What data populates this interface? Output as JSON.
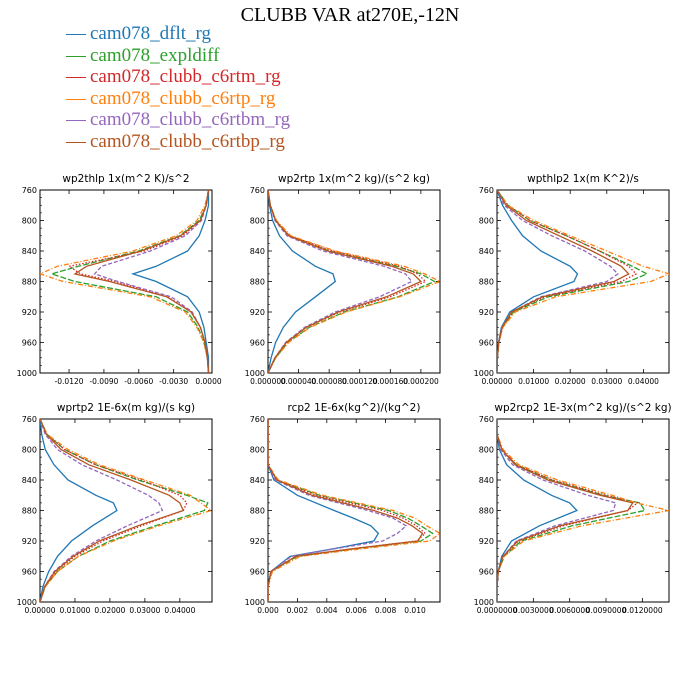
{
  "title": "CLUBB VAR at270E,-12N",
  "legend": [
    {
      "name": "cam078_dflt_rg",
      "color": "#1f77b4",
      "dash": "solid"
    },
    {
      "name": "cam078_expldiff",
      "color": "#2ca02c",
      "dash": "longdash"
    },
    {
      "name": "cam078_clubb_c6rtm_rg",
      "color": "#d62728",
      "dash": "dot"
    },
    {
      "name": "cam078_clubb_c6rtp_rg",
      "color": "#ff7f0e",
      "dash": "dashdot"
    },
    {
      "name": "cam078_clubb_c6rtbm_rg",
      "color": "#9467bd",
      "dash": "dash"
    },
    {
      "name": "cam078_clubb_c6rtbp_rg",
      "color": "#b5541f",
      "dash": "solid"
    }
  ],
  "chart_data": [
    {
      "type": "line",
      "title": "wp2thlp   1x(m^2 K)/s^2",
      "ylim": [
        760,
        1000
      ],
      "yticks": [
        760,
        800,
        840,
        880,
        920,
        960,
        1000
      ],
      "xlim": [
        -0.0145,
        0.0003
      ],
      "xticks": [
        -0.012,
        -0.009,
        -0.006,
        -0.003,
        0
      ],
      "xticklabels": [
        "-0.0120",
        "-0.0090",
        "-0.0060",
        "-0.0030",
        "0.0000"
      ],
      "levels": [
        760,
        780,
        800,
        820,
        840,
        860,
        870,
        880,
        900,
        920,
        940,
        960,
        980,
        1000
      ],
      "series": [
        {
          "name": "cam078_dflt_rg",
          "values": [
            0,
            0,
            -0.0003,
            -0.0008,
            -0.0018,
            -0.0045,
            -0.0065,
            -0.0045,
            -0.0018,
            -0.0008,
            -0.0004,
            -0.0002,
            0,
            0
          ]
        },
        {
          "name": "cam078_expldiff",
          "values": [
            0,
            -0.0002,
            -0.0008,
            -0.0025,
            -0.006,
            -0.0112,
            -0.0135,
            -0.0115,
            -0.0045,
            -0.0018,
            -0.0009,
            -0.0004,
            -0.0001,
            0
          ]
        },
        {
          "name": "cam078_clubb_c6rtm_rg",
          "values": [
            0,
            -0.0002,
            -0.0007,
            -0.0022,
            -0.0055,
            -0.012,
            -0.011,
            -0.008,
            -0.0035,
            -0.0015,
            -0.0007,
            -0.0003,
            -0.0001,
            0
          ]
        },
        {
          "name": "cam078_clubb_c6rtp_rg",
          "values": [
            0,
            -0.0003,
            -0.001,
            -0.0028,
            -0.0065,
            -0.013,
            -0.0145,
            -0.0125,
            -0.005,
            -0.002,
            -0.001,
            -0.0004,
            -0.0001,
            0
          ]
        },
        {
          "name": "cam078_clubb_c6rtbm_rg",
          "values": [
            0,
            -0.0002,
            -0.0006,
            -0.002,
            -0.005,
            -0.0092,
            -0.0098,
            -0.0078,
            -0.0032,
            -0.0014,
            -0.0007,
            -0.0003,
            -0.0001,
            0
          ]
        },
        {
          "name": "cam078_clubb_c6rtbp_rg",
          "values": [
            0,
            -0.0002,
            -0.0007,
            -0.0024,
            -0.0058,
            -0.0105,
            -0.0115,
            -0.0085,
            -0.0036,
            -0.0015,
            -0.0007,
            -0.0003,
            -0.0001,
            0
          ]
        }
      ]
    },
    {
      "type": "line",
      "title": "wp2rtp   1x(m^2 kg)/(s^2 kg)",
      "ylim": [
        760,
        1000
      ],
      "yticks": [
        760,
        800,
        840,
        880,
        920,
        960,
        1000
      ],
      "xlim": [
        0,
        0.000225
      ],
      "xticks": [
        0,
        4e-05,
        8e-05,
        0.00012,
        0.00016,
        0.0002
      ],
      "xticklabels": [
        "0.000000",
        "0.000040",
        "0.000080",
        "0.000120",
        "0.000160",
        "0.000200"
      ],
      "levels": [
        760,
        780,
        800,
        820,
        840,
        860,
        870,
        880,
        900,
        920,
        940,
        960,
        980,
        1000
      ],
      "series": [
        {
          "name": "cam078_dflt_rg",
          "values": [
            0,
            2e-06,
            6e-06,
            1.5e-05,
            3.2e-05,
            6.2e-05,
            8.5e-05,
            8.8e-05,
            6.2e-05,
            3.6e-05,
            2e-05,
            1e-05,
            4e-06,
            0
          ]
        },
        {
          "name": "cam078_expldiff",
          "values": [
            0,
            3e-06,
            1e-05,
            2.8e-05,
            8e-05,
            0.000168,
            0.0002,
            0.000218,
            0.00017,
            0.0001,
            5.4e-05,
            2.6e-05,
            1e-05,
            0
          ]
        },
        {
          "name": "cam078_clubb_c6rtm_rg",
          "values": [
            0,
            3e-06,
            1e-05,
            2.8e-05,
            8.5e-05,
            0.000172,
            0.000196,
            0.000206,
            0.00016,
            9.4e-05,
            5e-05,
            2.4e-05,
            9e-06,
            0
          ]
        },
        {
          "name": "cam078_clubb_c6rtp_rg",
          "values": [
            0,
            3e-06,
            1.1e-05,
            3e-05,
            8.8e-05,
            0.000178,
            0.000205,
            0.000225,
            0.000172,
            0.000102,
            5.5e-05,
            2.7e-05,
            1e-05,
            0
          ]
        },
        {
          "name": "cam078_clubb_c6rtbm_rg",
          "values": [
            0,
            3e-06,
            9e-06,
            2.5e-05,
            7.2e-05,
            0.000152,
            0.00018,
            0.000188,
            0.000146,
            8.8e-05,
            4.8e-05,
            2.3e-05,
            9e-06,
            0
          ]
        },
        {
          "name": "cam078_clubb_c6rtbp_rg",
          "values": [
            0,
            3e-06,
            1e-05,
            2.7e-05,
            7.8e-05,
            0.000162,
            0.00019,
            0.0002,
            0.000155,
            9.2e-05,
            5e-05,
            2.4e-05,
            9e-06,
            0
          ]
        }
      ]
    },
    {
      "type": "line",
      "title": "wpthlp2   1x(m K^2)/s",
      "ylim": [
        760,
        1000
      ],
      "yticks": [
        760,
        800,
        840,
        880,
        920,
        960,
        1000
      ],
      "xlim": [
        0,
        0.047
      ],
      "xticks": [
        0,
        0.01,
        0.02,
        0.03,
        0.04
      ],
      "xticklabels": [
        "0.00000",
        "0.01000",
        "0.02000",
        "0.03000",
        "0.04000"
      ],
      "levels": [
        760,
        780,
        800,
        820,
        840,
        860,
        870,
        880,
        900,
        920,
        940,
        960,
        980,
        1000
      ],
      "series": [
        {
          "name": "cam078_dflt_rg",
          "values": [
            0,
            0.0015,
            0.004,
            0.007,
            0.012,
            0.02,
            0.022,
            0.021,
            0.01,
            0.0035,
            0.0012,
            0.0004,
            0.0001,
            0
          ]
        },
        {
          "name": "cam078_expldiff",
          "values": [
            0,
            0.003,
            0.009,
            0.019,
            0.028,
            0.037,
            0.041,
            0.036,
            0.014,
            0.0045,
            0.0015,
            0.0005,
            0.0001,
            0
          ]
        },
        {
          "name": "cam078_clubb_c6rtm_rg",
          "values": [
            0,
            0.003,
            0.009,
            0.019,
            0.028,
            0.036,
            0.038,
            0.034,
            0.013,
            0.0042,
            0.0014,
            0.0005,
            0.0001,
            0
          ]
        },
        {
          "name": "cam078_clubb_c6rtp_rg",
          "values": [
            0,
            0.003,
            0.01,
            0.02,
            0.03,
            0.04,
            0.047,
            0.042,
            0.016,
            0.005,
            0.0016,
            0.0005,
            0.0001,
            0
          ]
        },
        {
          "name": "cam078_clubb_c6rtbm_rg",
          "values": [
            0,
            0.002,
            0.007,
            0.015,
            0.024,
            0.031,
            0.033,
            0.03,
            0.012,
            0.004,
            0.0013,
            0.0004,
            0.0001,
            0
          ]
        },
        {
          "name": "cam078_clubb_c6rtbp_rg",
          "values": [
            0,
            0.0025,
            0.008,
            0.017,
            0.026,
            0.034,
            0.036,
            0.032,
            0.0125,
            0.004,
            0.0014,
            0.0005,
            0.0001,
            0
          ]
        }
      ]
    },
    {
      "type": "line",
      "title": "wprtp2   1E-6x(m kg)/(s kg)",
      "ylim": [
        760,
        1000
      ],
      "yticks": [
        760,
        800,
        840,
        880,
        920,
        960,
        1000
      ],
      "xlim": [
        0,
        0.0492
      ],
      "xticks": [
        0,
        0.01,
        0.02,
        0.03,
        0.04
      ],
      "xticklabels": [
        "0.00000",
        "0.01000",
        "0.02000",
        "0.03000",
        "0.04000"
      ],
      "levels": [
        760,
        780,
        800,
        820,
        840,
        860,
        870,
        880,
        900,
        920,
        940,
        960,
        980,
        1000
      ],
      "series": [
        {
          "name": "cam078_dflt_rg",
          "values": [
            0,
            0.0005,
            0.0015,
            0.004,
            0.008,
            0.016,
            0.021,
            0.022,
            0.015,
            0.009,
            0.005,
            0.0025,
            0.0008,
            0
          ]
        },
        {
          "name": "cam078_expldiff",
          "values": [
            0,
            0.002,
            0.007,
            0.016,
            0.028,
            0.042,
            0.048,
            0.047,
            0.033,
            0.02,
            0.011,
            0.005,
            0.0015,
            0
          ]
        },
        {
          "name": "cam078_clubb_c6rtm_rg",
          "values": [
            0,
            0.002,
            0.007,
            0.016,
            0.029,
            0.04,
            0.042,
            0.041,
            0.029,
            0.018,
            0.01,
            0.0045,
            0.0014,
            0
          ]
        },
        {
          "name": "cam078_clubb_c6rtp_rg",
          "values": [
            0,
            0.002,
            0.008,
            0.017,
            0.03,
            0.043,
            0.046,
            0.049,
            0.034,
            0.021,
            0.011,
            0.005,
            0.0015,
            0
          ]
        },
        {
          "name": "cam078_clubb_c6rtbm_rg",
          "values": [
            0,
            0.0015,
            0.005,
            0.012,
            0.022,
            0.031,
            0.034,
            0.035,
            0.025,
            0.016,
            0.009,
            0.004,
            0.0013,
            0
          ]
        },
        {
          "name": "cam078_clubb_c6rtbp_rg",
          "values": [
            0,
            0.0018,
            0.006,
            0.014,
            0.026,
            0.037,
            0.04,
            0.041,
            0.028,
            0.017,
            0.0095,
            0.0043,
            0.0013,
            0
          ]
        }
      ]
    },
    {
      "type": "line",
      "title": "rcp2   1E-6x(kg^2)/(kg^2)",
      "ylim": [
        760,
        1000
      ],
      "yticks": [
        760,
        800,
        840,
        880,
        920,
        960,
        1000
      ],
      "xlim": [
        0,
        0.0117
      ],
      "xticks": [
        0,
        0.002,
        0.004,
        0.006,
        0.008,
        0.01
      ],
      "xticklabels": [
        "0.000",
        "0.002",
        "0.004",
        "0.006",
        "0.008",
        "0.010"
      ],
      "levels": [
        760,
        780,
        800,
        820,
        840,
        860,
        880,
        890,
        900,
        910,
        920,
        930,
        940,
        960,
        980,
        1000
      ],
      "series": [
        {
          "name": "cam078_dflt_rg",
          "values": [
            0,
            0,
            0,
            0,
            0.0004,
            0.002,
            0.0045,
            0.0058,
            0.007,
            0.0075,
            0.0072,
            0.0045,
            0.0015,
            0.0002,
            0,
            0
          ]
        },
        {
          "name": "cam078_expldiff",
          "values": [
            0,
            0,
            0,
            0,
            0.0006,
            0.0035,
            0.0082,
            0.0095,
            0.0104,
            0.0112,
            0.0104,
            0.006,
            0.002,
            0.0002,
            0,
            0
          ]
        },
        {
          "name": "cam078_clubb_c6rtm_rg",
          "values": [
            0,
            0,
            0,
            0,
            0.0006,
            0.0033,
            0.0078,
            0.0092,
            0.0101,
            0.0107,
            0.0101,
            0.0058,
            0.0019,
            0.0002,
            0,
            0
          ]
        },
        {
          "name": "cam078_clubb_c6rtp_rg",
          "values": [
            0,
            0,
            0,
            0,
            0.0007,
            0.0037,
            0.0085,
            0.01,
            0.0108,
            0.0117,
            0.011,
            0.0065,
            0.0022,
            0.0003,
            0,
            0
          ]
        },
        {
          "name": "cam078_clubb_c6rtbm_rg",
          "values": [
            0,
            0,
            0,
            0,
            0.0005,
            0.0028,
            0.0068,
            0.0085,
            0.0094,
            0.0088,
            0.0078,
            0.0046,
            0.0016,
            0.0002,
            0,
            0
          ]
        },
        {
          "name": "cam078_clubb_c6rtbp_rg",
          "values": [
            0,
            0,
            0,
            0,
            0.0006,
            0.003,
            0.0072,
            0.0088,
            0.0098,
            0.0105,
            0.0102,
            0.0058,
            0.0019,
            0.0002,
            0,
            0
          ]
        }
      ]
    },
    {
      "type": "line",
      "title": "wp2rcp2   1E-3x(m^2 kg)/(s^2 kg)",
      "ylim": [
        760,
        1000
      ],
      "yticks": [
        760,
        800,
        840,
        880,
        920,
        960,
        1000
      ],
      "xlim": [
        0,
        0.0142
      ],
      "xticks": [
        0,
        0.003,
        0.006,
        0.009,
        0.012
      ],
      "xticklabels": [
        "0.0000000",
        "0.0030000",
        "0.0060000",
        "0.0090000",
        "0.0120000"
      ],
      "levels": [
        760,
        780,
        800,
        820,
        840,
        860,
        870,
        880,
        900,
        920,
        940,
        960,
        980,
        1000
      ],
      "series": [
        {
          "name": "cam078_dflt_rg",
          "values": [
            0,
            0,
            0.0002,
            0.0008,
            0.0022,
            0.0045,
            0.006,
            0.0066,
            0.0035,
            0.0012,
            0.0004,
            0.0001,
            0,
            0
          ]
        },
        {
          "name": "cam078_expldiff",
          "values": [
            0,
            0,
            0.0004,
            0.0016,
            0.0045,
            0.0088,
            0.0118,
            0.0122,
            0.0062,
            0.002,
            0.0006,
            0.0001,
            0,
            0
          ]
        },
        {
          "name": "cam078_clubb_c6rtm_rg",
          "values": [
            0,
            0,
            0.0004,
            0.0016,
            0.0046,
            0.009,
            0.0116,
            0.0108,
            0.0055,
            0.0018,
            0.0005,
            0.0001,
            0,
            0
          ]
        },
        {
          "name": "cam078_clubb_c6rtp_rg",
          "values": [
            0,
            0,
            0.0005,
            0.0018,
            0.005,
            0.0095,
            0.0115,
            0.0142,
            0.007,
            0.0022,
            0.0006,
            0.0001,
            0,
            0
          ]
        },
        {
          "name": "cam078_clubb_c6rtbm_rg",
          "values": [
            0,
            0,
            0.0003,
            0.0013,
            0.0038,
            0.0075,
            0.0098,
            0.0096,
            0.0048,
            0.0016,
            0.0005,
            0.0001,
            0,
            0
          ]
        },
        {
          "name": "cam078_clubb_c6rtbp_rg",
          "values": [
            0,
            0,
            0.0004,
            0.0015,
            0.0042,
            0.0085,
            0.0112,
            0.0108,
            0.0052,
            0.0017,
            0.0005,
            0.0001,
            0,
            0
          ]
        }
      ]
    }
  ]
}
